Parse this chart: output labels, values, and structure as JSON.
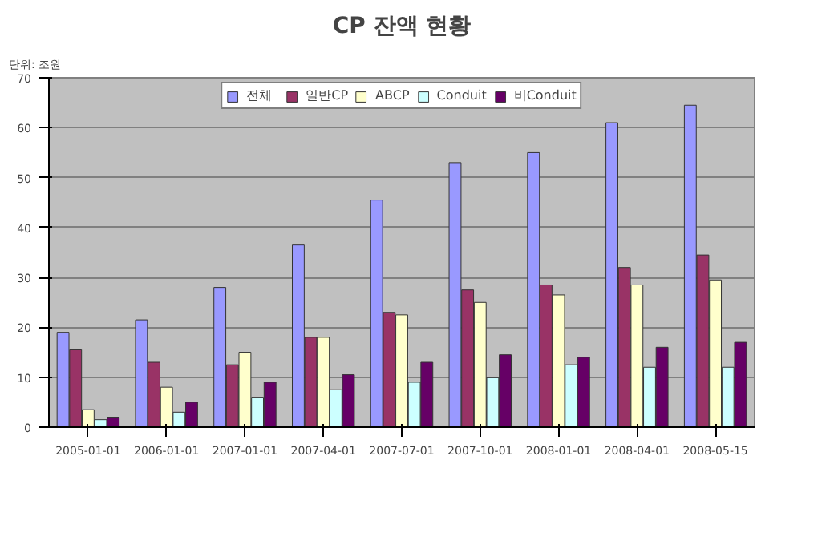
{
  "chart_data": {
    "type": "bar",
    "title": "CP 잔액 현황",
    "annotations": [
      "단위: 조원"
    ],
    "categories": [
      "2005-01-01",
      "2006-01-01",
      "2007-01-01",
      "2007-04-01",
      "2007-07-01",
      "2007-10-01",
      "2008-01-01",
      "2008-04-01",
      "2008-05-15"
    ],
    "series": [
      {
        "name": "전체",
        "color": "#9999ff",
        "values": [
          19,
          21.5,
          28,
          36.5,
          45.5,
          53,
          55,
          61,
          64.5
        ]
      },
      {
        "name": "일반CP",
        "color": "#993366",
        "values": [
          15.5,
          13,
          12.5,
          18,
          23,
          27.5,
          28.5,
          32,
          34.5
        ]
      },
      {
        "name": "ABCP",
        "color": "#ffffcc",
        "values": [
          3.5,
          8,
          15,
          18,
          22.5,
          25,
          26.5,
          28.5,
          29.5
        ]
      },
      {
        "name": "Conduit",
        "color": "#ccffff",
        "values": [
          1.5,
          3,
          6,
          7.5,
          9,
          10,
          12.5,
          12,
          12
        ]
      },
      {
        "name": "비Conduit",
        "color": "#660066",
        "values": [
          2,
          5,
          9,
          10.5,
          13,
          14.5,
          14,
          16,
          17
        ]
      }
    ],
    "ylim": [
      0,
      70
    ],
    "yticks": [
      0,
      10,
      20,
      30,
      40,
      50,
      60,
      70
    ],
    "grid": "y",
    "legend": "top"
  }
}
